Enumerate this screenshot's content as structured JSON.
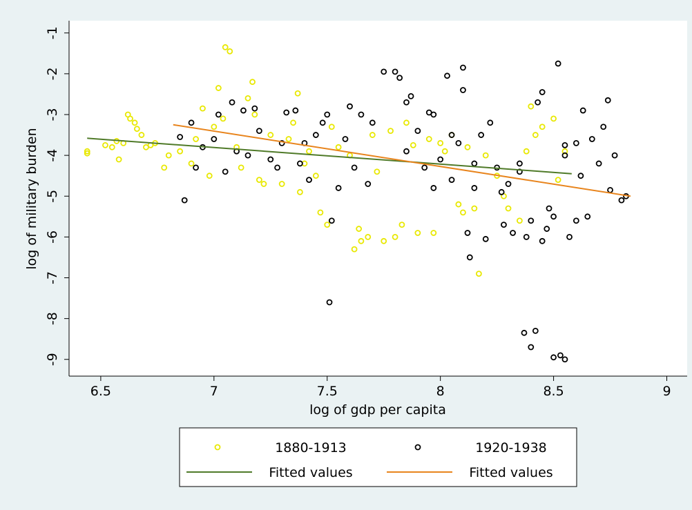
{
  "chart_data": {
    "type": "scatter",
    "x_label": "log of gdp per capita",
    "y_label": "log of military burden",
    "xlim": [
      6.36,
      9.09
    ],
    "ylim": [
      -9.41,
      -0.7
    ],
    "xticks": [
      6.5,
      7,
      7.5,
      8,
      8.5,
      9
    ],
    "yticks": [
      -1,
      -2,
      -3,
      -4,
      -5,
      -6,
      -7,
      -8,
      -9
    ],
    "grid": false,
    "legend": "bottom",
    "series": [
      {
        "name": "1880-1913",
        "type": "scatter",
        "color": "#e8e800",
        "x": [
          6.44,
          6.44,
          6.52,
          6.55,
          6.57,
          6.58,
          6.6,
          6.62,
          6.63,
          6.65,
          6.66,
          6.68,
          6.7,
          6.72,
          6.74,
          6.78,
          6.8,
          6.85,
          6.9,
          6.92,
          6.95,
          6.98,
          7.0,
          7.02,
          7.04,
          7.05,
          7.07,
          7.1,
          7.12,
          7.15,
          7.17,
          7.18,
          7.2,
          7.22,
          7.25,
          7.3,
          7.33,
          7.35,
          7.37,
          7.38,
          7.4,
          7.42,
          7.45,
          7.47,
          7.5,
          7.55,
          7.6,
          7.62,
          7.64,
          7.65,
          7.68,
          7.7,
          7.72,
          7.75,
          7.8,
          7.83,
          7.85,
          7.9,
          7.95,
          7.97,
          8.0,
          8.05,
          8.08,
          8.1,
          8.12,
          8.15,
          8.17,
          8.2,
          8.25,
          8.28,
          8.3,
          8.35,
          8.38,
          8.4,
          8.42,
          8.45,
          8.5,
          8.52,
          8.55,
          7.52,
          7.78,
          7.88,
          8.02
        ],
        "values": [
          -3.9,
          -3.95,
          -3.75,
          -3.8,
          -3.65,
          -4.1,
          -3.7,
          -3.0,
          -3.1,
          -3.2,
          -3.35,
          -3.5,
          -3.8,
          -3.75,
          -3.7,
          -4.3,
          -4.0,
          -3.9,
          -4.2,
          -3.6,
          -2.85,
          -4.5,
          -3.3,
          -2.35,
          -3.1,
          -1.35,
          -1.45,
          -3.8,
          -4.3,
          -2.6,
          -2.2,
          -3.0,
          -4.6,
          -4.7,
          -3.5,
          -4.7,
          -3.6,
          -3.2,
          -2.48,
          -4.9,
          -4.2,
          -3.9,
          -4.5,
          -5.4,
          -5.7,
          -3.8,
          -4.0,
          -6.3,
          -5.8,
          -6.1,
          -6.0,
          -3.5,
          -4.4,
          -6.1,
          -6.0,
          -5.7,
          -3.2,
          -5.9,
          -3.6,
          -5.9,
          -3.7,
          -3.5,
          -5.2,
          -5.4,
          -3.8,
          -5.3,
          -6.9,
          -4.0,
          -4.5,
          -5.0,
          -5.3,
          -5.6,
          -3.9,
          -2.8,
          -3.5,
          -3.3,
          -3.1,
          -4.6,
          -3.9,
          -3.3,
          -3.4,
          -3.75,
          -3.9
        ]
      },
      {
        "name": "1920-1938",
        "type": "scatter",
        "color": "#000000",
        "x": [
          6.85,
          6.87,
          6.9,
          6.92,
          6.95,
          7.0,
          7.02,
          7.05,
          7.08,
          7.1,
          7.13,
          7.15,
          7.18,
          7.2,
          7.25,
          7.28,
          7.3,
          7.32,
          7.36,
          7.38,
          7.4,
          7.42,
          7.45,
          7.48,
          7.5,
          7.51,
          7.52,
          7.55,
          7.58,
          7.6,
          7.62,
          7.65,
          7.68,
          7.7,
          7.75,
          7.8,
          7.82,
          7.85,
          7.87,
          7.9,
          7.93,
          7.95,
          7.97,
          8.0,
          8.03,
          8.05,
          8.08,
          8.1,
          8.1,
          8.12,
          8.13,
          8.15,
          8.18,
          8.2,
          8.22,
          8.25,
          8.28,
          8.3,
          8.32,
          8.35,
          8.37,
          8.38,
          8.4,
          8.42,
          8.43,
          8.45,
          8.47,
          8.5,
          8.5,
          8.52,
          8.53,
          8.55,
          8.55,
          8.57,
          8.6,
          8.62,
          8.63,
          8.65,
          8.67,
          8.7,
          8.72,
          8.74,
          8.75,
          8.77,
          8.8,
          8.82,
          8.4,
          8.45,
          8.48,
          8.6,
          8.35,
          8.27,
          8.05,
          7.97,
          8.15,
          7.85,
          8.55
        ],
        "values": [
          -3.55,
          -5.1,
          -3.2,
          -4.3,
          -3.8,
          -3.6,
          -3.0,
          -4.4,
          -2.7,
          -3.9,
          -2.9,
          -4.0,
          -2.85,
          -3.4,
          -4.1,
          -4.3,
          -3.7,
          -2.95,
          -2.9,
          -4.2,
          -3.7,
          -4.6,
          -3.5,
          -3.2,
          -3.0,
          -7.6,
          -5.6,
          -4.8,
          -3.6,
          -2.8,
          -4.3,
          -3.0,
          -4.7,
          -3.2,
          -1.95,
          -1.95,
          -2.1,
          -2.7,
          -2.55,
          -3.4,
          -4.3,
          -2.95,
          -4.8,
          -4.1,
          -2.05,
          -4.6,
          -3.7,
          -1.85,
          -2.4,
          -5.9,
          -6.5,
          -4.8,
          -3.5,
          -6.05,
          -3.2,
          -4.3,
          -5.7,
          -4.7,
          -5.9,
          -4.2,
          -8.35,
          -6.0,
          -8.7,
          -8.3,
          -2.7,
          -2.45,
          -5.8,
          -8.95,
          -5.5,
          -1.75,
          -8.9,
          -9.0,
          -4.0,
          -6.0,
          -3.7,
          -4.5,
          -2.9,
          -5.5,
          -3.6,
          -4.2,
          -3.3,
          -2.65,
          -4.85,
          -4.0,
          -5.1,
          -5.0,
          -5.6,
          -6.1,
          -5.3,
          -5.6,
          -4.4,
          -4.9,
          -3.5,
          -3.0,
          -4.2,
          -3.9,
          -3.75
        ]
      },
      {
        "name": "Fitted values",
        "type": "line",
        "color": "#4f7a28",
        "x": [
          6.44,
          8.58
        ],
        "values": [
          -3.58,
          -4.45
        ]
      },
      {
        "name": "Fitted values",
        "type": "line",
        "color": "#e8841c",
        "x": [
          6.82,
          8.84
        ],
        "values": [
          -3.25,
          -5.0
        ]
      }
    ]
  }
}
